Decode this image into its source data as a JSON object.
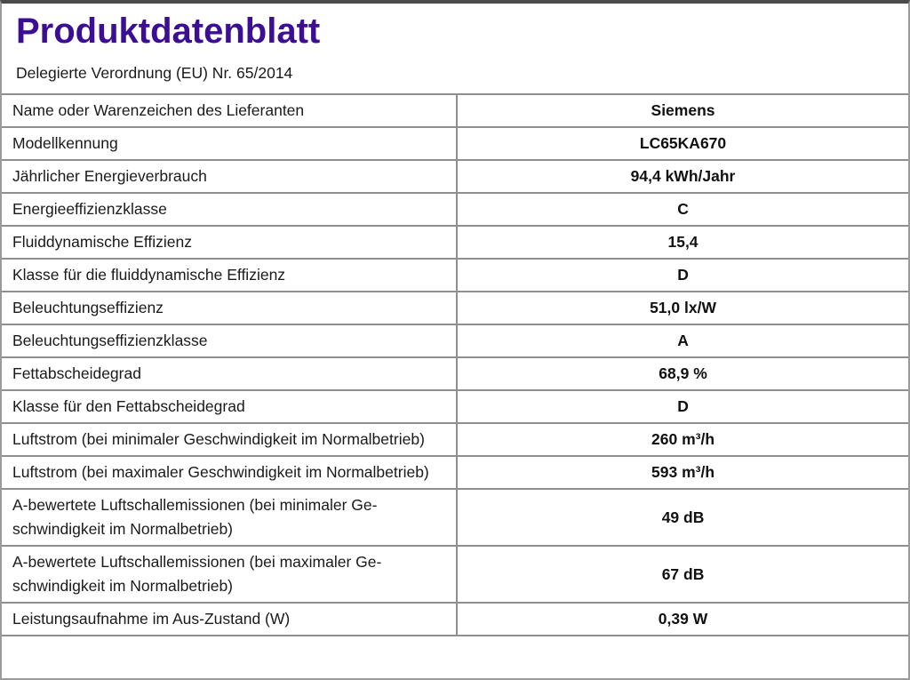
{
  "page": {
    "title": "Produktdatenblatt",
    "subtitle": "Delegierte Verordnung (EU) Nr. 65/2014"
  },
  "colors": {
    "title_accent": "#3b0e93",
    "table_border": "#8f8f8f",
    "body_text": "#1a1a1a"
  },
  "table": {
    "rows": [
      {
        "label": "Name oder Warenzeichen des Lieferanten",
        "value": "Siemens"
      },
      {
        "label": "Modellkennung",
        "value": "LC65KA670"
      },
      {
        "label": "Jährlicher Energieverbrauch",
        "value": "94,4 kWh/Jahr"
      },
      {
        "label": "Energieeffizienzklasse",
        "value": "C"
      },
      {
        "label": "Fluiddynamische Effizienz",
        "value": "15,4"
      },
      {
        "label": "Klasse für die fluiddynamische Effizienz",
        "value": "D"
      },
      {
        "label": "Beleuchtungseffizienz",
        "value": "51,0 lx/W"
      },
      {
        "label": "Beleuchtungseffizienzklasse",
        "value": "A"
      },
      {
        "label": "Fettabscheidegrad",
        "value": "68,9 %"
      },
      {
        "label": "Klasse für den Fettabscheidegrad",
        "value": "D"
      },
      {
        "label": "Luftstrom (bei minimaler Geschwindigkeit im Normalbe­trieb)",
        "value": "260 m³/h"
      },
      {
        "label": "Luftstrom (bei maximaler Geschwindigkeit im Normalbe­trieb)",
        "value": "593 m³/h"
      },
      {
        "label": "A-bewertete Luftschallemissionen (bei minimaler Ge­schwindigkeit im Normalbetrieb)",
        "value": "49 dB"
      },
      {
        "label": "A-bewertete Luftschallemissionen (bei maximaler Ge­schwindigkeit im Normalbetrieb)",
        "value": "67 dB"
      },
      {
        "label": "Leistungsaufnahme im Aus-Zustand (W)",
        "value": "0,39 W"
      }
    ]
  }
}
